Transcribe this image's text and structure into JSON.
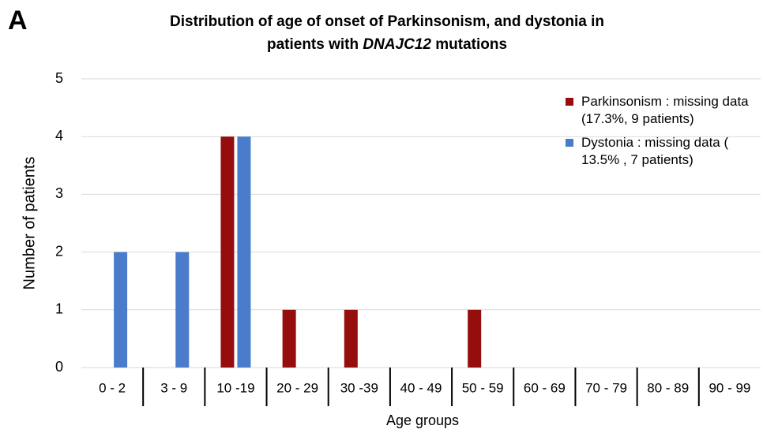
{
  "panel_label": "A",
  "chart_data": {
    "type": "bar",
    "title": {
      "line1": "Distribution of age of onset of Parkinsonism, and dystonia in",
      "line2_start": "patients with",
      "line2_italic": "DNAJC12",
      "line2_end": "mutations"
    },
    "xlabel": "Age groups",
    "ylabel": "Number of patients",
    "categories": [
      "0 - 2",
      "3 - 9",
      "10 -19",
      "20 - 29",
      "30 -39",
      "40 - 49",
      "50 - 59",
      "60 - 69",
      "70 - 79",
      "80 - 89",
      "90 - 99"
    ],
    "series": [
      {
        "name": "Parkinsonism : missing data (17.3%, 9 patients)",
        "color": "#960d0d",
        "values": [
          0,
          0,
          4,
          1,
          1,
          0,
          1,
          0,
          0,
          0,
          0
        ]
      },
      {
        "name": "Dystonia : missing data ( 13.5% , 7 patients)",
        "color": "#4a7ccb",
        "values": [
          2,
          2,
          4,
          0,
          0,
          0,
          0,
          0,
          0,
          0,
          0
        ]
      }
    ],
    "ylim": [
      0,
      5
    ],
    "yticks": [
      0,
      1,
      2,
      3,
      4,
      5
    ],
    "grid": true,
    "legend": "upper right"
  }
}
